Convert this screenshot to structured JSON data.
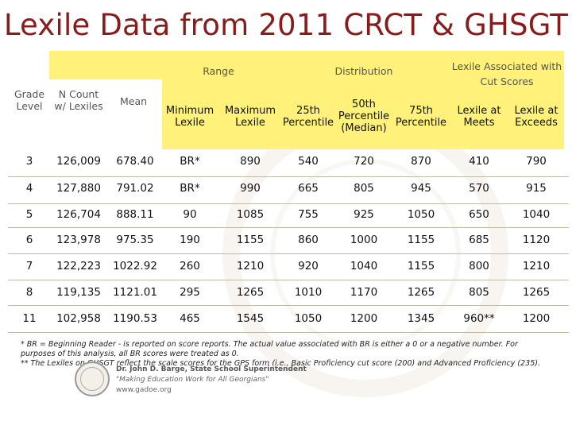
{
  "title": "Lexile Data from 2011 CRCT & GHSGT",
  "header": {
    "range": "Range",
    "distribution": "Distribution",
    "cut_scores": "Lexile Associated with Cut Scores",
    "grade_level": [
      "Grade",
      "Level"
    ],
    "n_count": [
      "N Count",
      "w/ Lexiles"
    ],
    "mean": "Mean",
    "minimum_lexile": [
      "Minimum",
      "Lexile"
    ],
    "maximum_lexile": [
      "Maximum",
      "Lexile"
    ],
    "p25": [
      "25th",
      "Percentile"
    ],
    "p50": [
      "50th",
      "Percentile",
      "(Median)"
    ],
    "p75": [
      "75th",
      "Percentile"
    ],
    "lexile_meets": [
      "Lexile at",
      "Meets"
    ],
    "lexile_exceeds": [
      "Lexile at",
      "Exceeds"
    ]
  },
  "rows": [
    [
      "3",
      "126,009",
      "678.40",
      "BR*",
      "890",
      "540",
      "720",
      "870",
      "410",
      "790"
    ],
    [
      "4",
      "127,880",
      "791.02",
      "BR*",
      "990",
      "665",
      "805",
      "945",
      "570",
      "915"
    ],
    [
      "5",
      "126,704",
      "888.11",
      "90",
      "1085",
      "755",
      "925",
      "1050",
      "650",
      "1040"
    ],
    [
      "6",
      "123,978",
      "975.35",
      "190",
      "1155",
      "860",
      "1000",
      "1155",
      "685",
      "1120"
    ],
    [
      "7",
      "122,223",
      "1022.92",
      "260",
      "1210",
      "920",
      "1040",
      "1155",
      "800",
      "1210"
    ],
    [
      "8",
      "119,135",
      "1121.01",
      "295",
      "1265",
      "1010",
      "1170",
      "1265",
      "805",
      "1265"
    ],
    [
      "11",
      "102,958",
      "1190.53",
      "465",
      "1545",
      "1050",
      "1200",
      "1345",
      "960**",
      "1200"
    ]
  ],
  "notes": {
    "line1": "* BR = Beginning Reader - is reported on score reports.  The actual value associated with BR is either a 0 or a negative number.  For",
    "line2": "purposes of this analysis, all BR scores were treated as 0.",
    "line3": "** The Lexiles on GHSGT reflect the scale scores for the GPS form (i.e., Basic Proficiency cut score (200) and Advanced Proficiency  (235)."
  },
  "footer": {
    "name": "Dr. John D. Barge, State School Superintendent",
    "motto": "\"Making Education Work for All Georgians\"",
    "url": "www.gadoe.org"
  }
}
